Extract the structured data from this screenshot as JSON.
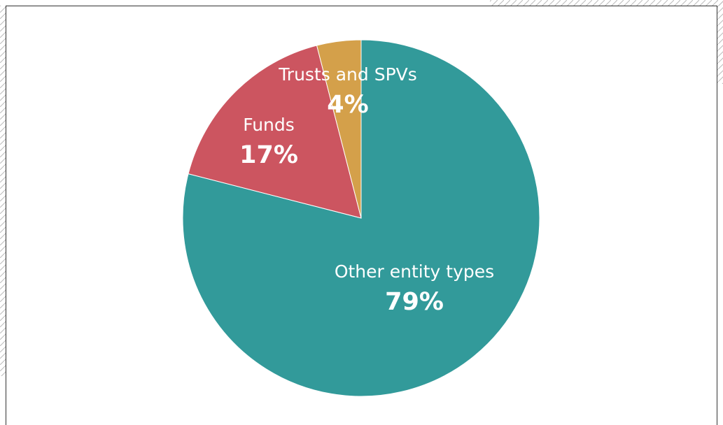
{
  "chart_data": {
    "type": "pie",
    "categories": [
      "Other entity types",
      "Funds",
      "Trusts and SPVs"
    ],
    "values": [
      79,
      17,
      4
    ],
    "value_labels": [
      "79%",
      "17%",
      "4%"
    ],
    "colors": [
      "#329a9a",
      "#cc5560",
      "#d4a04a"
    ]
  }
}
